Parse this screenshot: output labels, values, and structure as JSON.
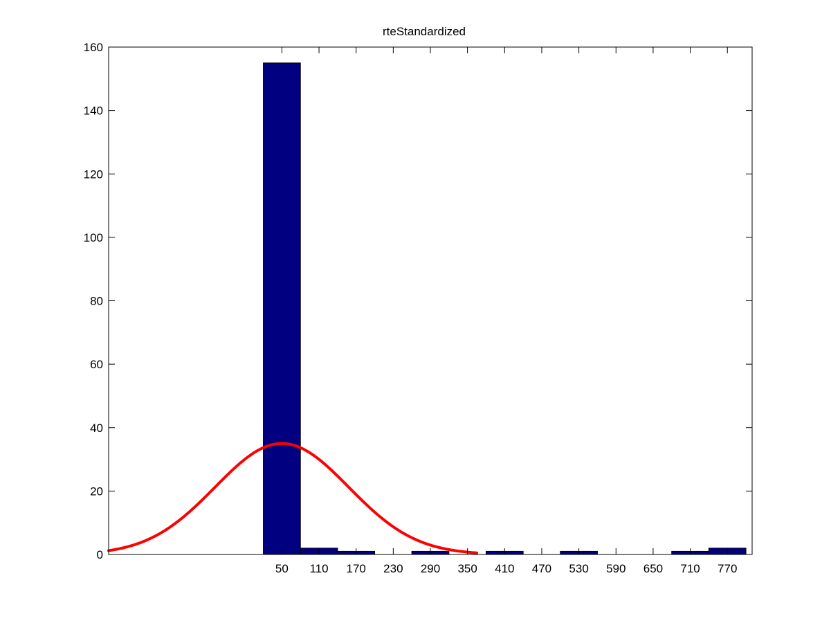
{
  "chart_data": {
    "type": "bar",
    "title": "rteStandardized",
    "xlabel": "",
    "ylabel": "",
    "xlim": [
      -230,
      810
    ],
    "ylim": [
      0,
      160
    ],
    "x_ticks": [
      50,
      110,
      170,
      230,
      290,
      350,
      410,
      470,
      530,
      590,
      650,
      710,
      770
    ],
    "y_ticks": [
      0,
      20,
      40,
      60,
      80,
      100,
      120,
      140,
      160
    ],
    "grid": false,
    "bin_width": 60,
    "categories": [
      50,
      110,
      170,
      230,
      290,
      350,
      410,
      470,
      530,
      590,
      650,
      710,
      770
    ],
    "values": [
      155,
      2,
      1,
      0,
      1,
      0,
      1,
      0,
      1,
      0,
      0,
      1,
      2
    ],
    "bar_color": "#000080",
    "fit_curve": {
      "type": "line",
      "distribution": "normal",
      "color": "#ff0000",
      "mean": 50,
      "peak": 35,
      "sigma": 108,
      "x_range": [
        -230,
        365
      ]
    }
  }
}
